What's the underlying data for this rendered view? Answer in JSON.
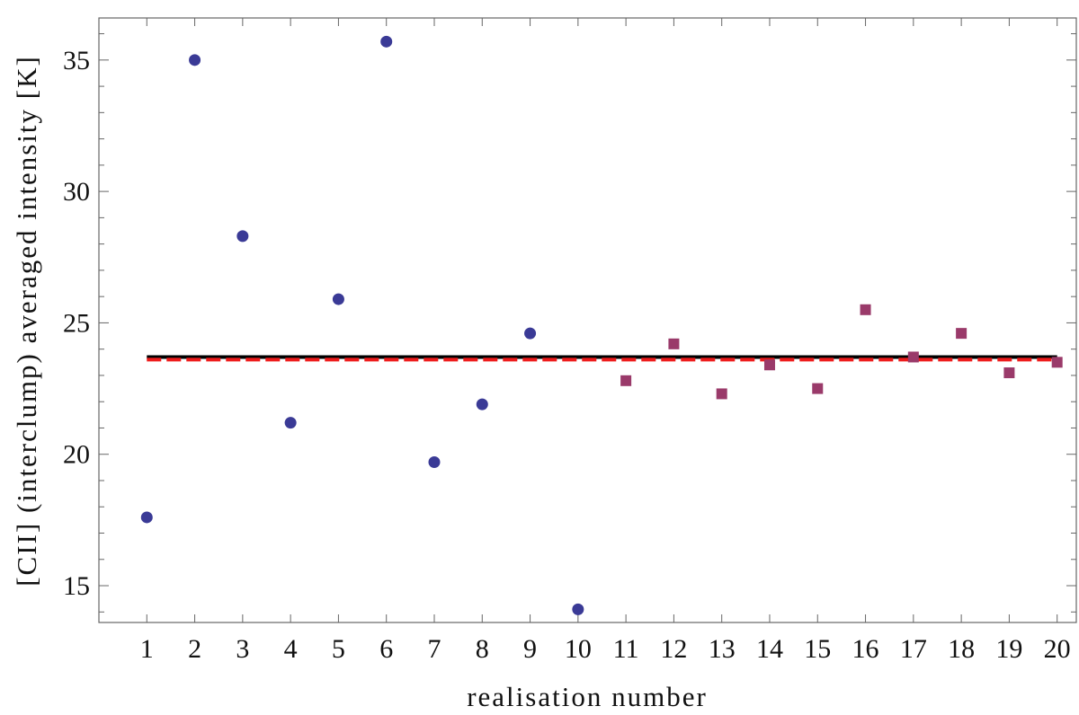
{
  "chart_data": {
    "type": "scatter",
    "xlabel": "realisation number",
    "ylabel": "[CII] (interclump) averaged intensity [K]",
    "xlim": [
      0,
      20.4
    ],
    "ylim": [
      13.6,
      36.6
    ],
    "x_ticks": [
      1,
      2,
      3,
      4,
      5,
      6,
      7,
      8,
      9,
      10,
      11,
      12,
      13,
      14,
      15,
      16,
      17,
      18,
      19,
      20
    ],
    "y_ticks": [
      15,
      20,
      25,
      30,
      35
    ],
    "grid": false,
    "series": [
      {
        "marker": "circle",
        "color": "#3a3a96",
        "x": [
          1,
          2,
          3,
          4,
          5,
          6,
          7,
          8,
          9,
          10
        ],
        "y": [
          17.6,
          35.0,
          28.3,
          21.2,
          25.9,
          35.7,
          19.7,
          21.9,
          24.6,
          14.1
        ]
      },
      {
        "marker": "square",
        "color": "#9a3a6a",
        "x": [
          11,
          12,
          13,
          14,
          15,
          16,
          17,
          18,
          19,
          20
        ],
        "y": [
          22.8,
          24.2,
          22.3,
          23.4,
          22.5,
          25.5,
          23.7,
          24.6,
          23.1,
          23.5
        ]
      }
    ],
    "reference_lines": [
      {
        "style": "solid",
        "color": "#000000",
        "y": 23.7,
        "x_range": [
          1,
          20
        ]
      },
      {
        "style": "dashed",
        "color": "#ee1c1c",
        "y": 23.6,
        "x_range": [
          1,
          20
        ]
      }
    ]
  }
}
